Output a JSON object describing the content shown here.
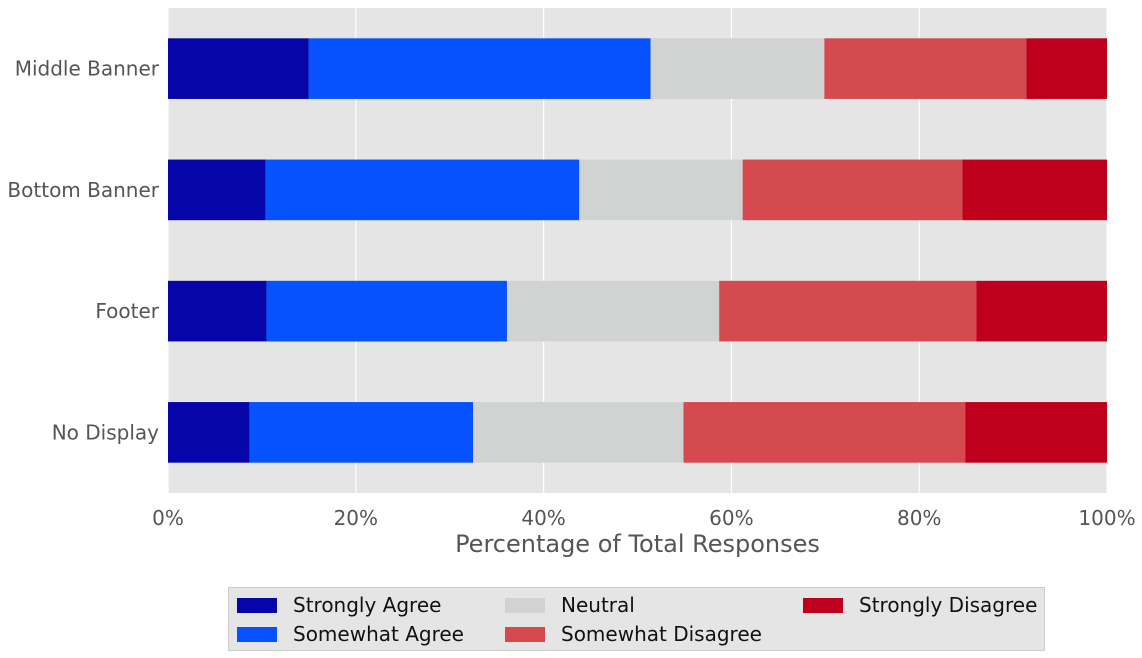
{
  "chart_data": {
    "type": "bar",
    "orientation": "horizontal",
    "stacked": true,
    "categories": [
      "Middle Banner",
      "Bottom Banner",
      "Footer",
      "No Display"
    ],
    "series": [
      {
        "name": "Strongly Agree",
        "color": "#0505aa",
        "values": [
          15.0,
          10.4,
          10.5,
          8.7
        ]
      },
      {
        "name": "Somewhat Agree",
        "color": "#0752ff",
        "values": [
          36.4,
          33.4,
          25.6,
          23.8
        ]
      },
      {
        "name": "Neutral",
        "color": "#d0d3d2",
        "values": [
          18.5,
          17.4,
          22.6,
          22.4
        ]
      },
      {
        "name": "Somewhat Disagree",
        "color": "#d54a4e",
        "values": [
          21.5,
          23.4,
          27.4,
          30.0
        ]
      },
      {
        "name": "Strongly Disagree",
        "color": "#be001d",
        "values": [
          8.6,
          15.4,
          13.9,
          15.1
        ]
      }
    ],
    "xlabel": "Percentage of Total Responses",
    "ylabel": "",
    "xlim": [
      0,
      100
    ],
    "xticks": [
      0,
      20,
      40,
      60,
      80,
      100
    ],
    "xtick_labels": [
      "0%",
      "20%",
      "40%",
      "60%",
      "80%",
      "100%"
    ],
    "grid": true,
    "legend_position": "bottom-center"
  }
}
